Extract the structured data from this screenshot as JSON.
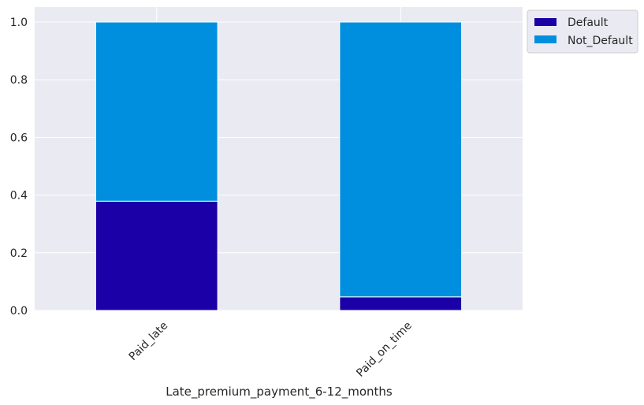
{
  "chart_data": {
    "type": "bar",
    "stacked": true,
    "categories": [
      "Paid_late",
      "Paid_on_time"
    ],
    "series": [
      {
        "name": "Default",
        "values": [
          0.379,
          0.047
        ],
        "color": "#1a00a6"
      },
      {
        "name": "Not_Default",
        "values": [
          0.621,
          0.953
        ],
        "color": "#008fdf"
      }
    ],
    "title": "",
    "xlabel": "Late_premium_payment_6-12_months",
    "ylabel": "",
    "ylim": [
      0,
      1.05
    ],
    "yticks": [
      "0.0",
      "0.2",
      "0.4",
      "0.6",
      "0.8",
      "1.0"
    ],
    "grid": true,
    "legend": "outside top-right",
    "background": "#eaeaf2"
  }
}
